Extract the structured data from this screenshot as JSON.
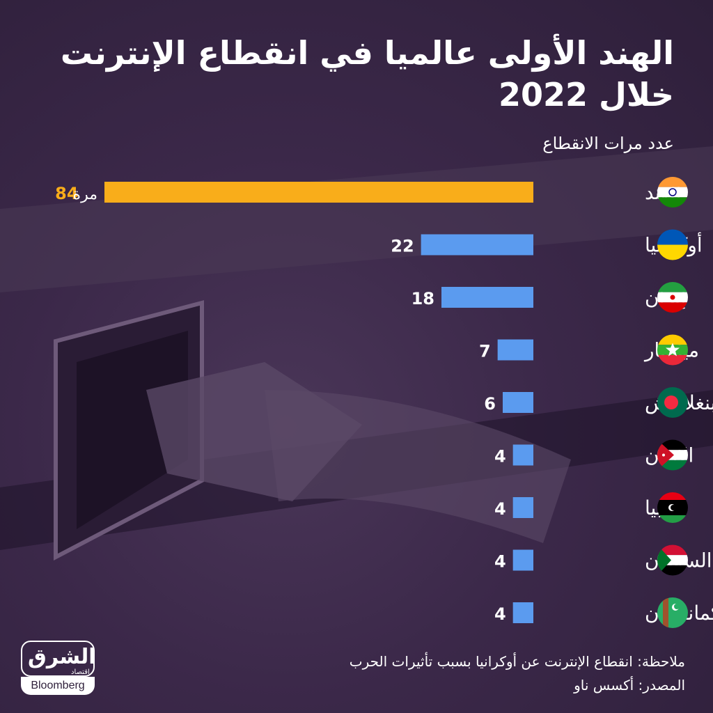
{
  "title": "الهند الأولى عالميا في انقطاع الإنترنت خلال 2022",
  "subtitle": "عدد مرات الانقطاع",
  "note": "ملاحظة: انقطاع الإنترنت عن أوكرانيا بسبب تأثيرات الحرب",
  "source": "المصدر: أكسس ناو",
  "logo": {
    "arabic": "الشرق",
    "arabic_small": "اقتصاد",
    "english": "Bloomberg"
  },
  "colors": {
    "highlight": "#f9ad1a",
    "bar": "#5b9bef",
    "background": "#3b2849"
  },
  "chart_data": {
    "type": "bar",
    "orientation": "horizontal",
    "title": "الهند الأولى عالميا في انقطاع الإنترنت خلال 2022",
    "value_label": "عدد مرات الانقطاع",
    "unit_suffix": "مرة",
    "categories": [
      "الهند",
      "أوكرانيا",
      "إيران",
      "ميانمار",
      "بنغلاديش",
      "الأردن",
      "ليبيا",
      "السودان",
      "تركمانستان"
    ],
    "values": [
      84,
      22,
      18,
      7,
      6,
      4,
      4,
      4,
      4
    ],
    "highlight_index": 0,
    "flags": [
      "india-flag",
      "ukraine-flag",
      "iran-flag",
      "myanmar-flag",
      "bangladesh-flag",
      "jordan-flag",
      "libya-flag",
      "sudan-flag",
      "turkmenistan-flag"
    ],
    "xlim": [
      0,
      84
    ]
  }
}
